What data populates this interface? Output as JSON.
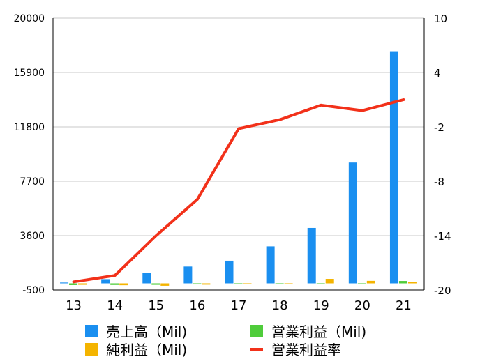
{
  "chart_data": {
    "type": "bar",
    "categories": [
      "13",
      "14",
      "15",
      "16",
      "17",
      "18",
      "19",
      "20",
      "21"
    ],
    "series": [
      {
        "name": "売上高（Mil)",
        "type": "bar",
        "axis": "left",
        "color": "#1a8ff0",
        "values": [
          60,
          320,
          780,
          1270,
          1710,
          2790,
          4180,
          9110,
          17500
        ]
      },
      {
        "name": "営業利益（Mil)",
        "type": "bar",
        "axis": "left",
        "color": "#4fcc3b",
        "values": [
          -130,
          -120,
          -110,
          -80,
          -30,
          -40,
          -20,
          -10,
          180
        ]
      },
      {
        "name": "純利益（Mil)",
        "type": "bar",
        "axis": "left",
        "color": "#f4b400",
        "values": [
          -110,
          -140,
          -180,
          -100,
          -30,
          -40,
          340,
          190,
          130
        ]
      },
      {
        "name": "営業利益率",
        "type": "line",
        "axis": "right",
        "color": "#f2311a",
        "values": [
          -19.1,
          -18.4,
          -14.0,
          -10.0,
          -2.2,
          -1.2,
          0.4,
          -0.2,
          1.0
        ]
      }
    ],
    "y_left": {
      "min": -500,
      "max": 20000,
      "ticks": [
        "20000",
        "15900",
        "11800",
        "7700",
        "3600",
        "-500"
      ]
    },
    "y_right": {
      "min": -20,
      "max": 10,
      "ticks": [
        "10",
        "4",
        "-2",
        "-8",
        "-14",
        "-20"
      ]
    },
    "grid": true,
    "legend_position": "bottom",
    "xlabel": "",
    "ylabel": "",
    "title": ""
  }
}
